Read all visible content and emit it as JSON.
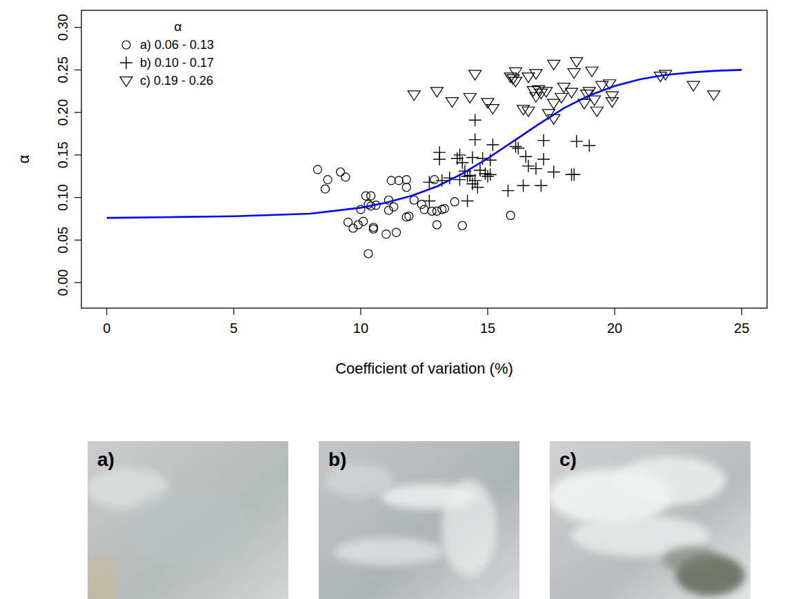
{
  "chart_data": {
    "type": "scatter",
    "x_label": "Coefficient of variation  (%)",
    "y_label": "α",
    "legend_title": "α",
    "legend": "top-left",
    "xlim": [
      -1,
      26
    ],
    "ylim": [
      -0.03,
      0.32
    ],
    "xticks": [
      0,
      5,
      10,
      15,
      20,
      25
    ],
    "yticks": [
      {
        "value": 0,
        "label": "0.00"
      },
      {
        "value": 0.05,
        "label": "0.05"
      },
      {
        "value": 0.1,
        "label": "0.10"
      },
      {
        "value": 0.15,
        "label": "0.15"
      },
      {
        "value": 0.2,
        "label": "0.20"
      },
      {
        "value": 0.25,
        "label": "0.25"
      },
      {
        "value": 0.3,
        "label": "0.30"
      }
    ],
    "grid": false,
    "series": [
      {
        "name": "a) 0.06 - 0.13",
        "type": "scatter",
        "marker": "circle",
        "color": "#000000",
        "x": [
          8.3,
          8.6,
          8.7,
          9.2,
          9.4,
          9.5,
          9.7,
          9.9,
          10.0,
          10.1,
          10.2,
          10.3,
          10.3,
          10.4,
          10.4,
          10.5,
          10.5,
          10.6,
          11.0,
          11.1,
          11.1,
          11.2,
          11.3,
          11.4,
          11.5,
          11.8,
          11.8,
          11.8,
          11.9,
          12.1,
          12.4,
          12.5,
          12.8,
          12.9,
          13.0,
          13.0,
          13.2,
          13.3,
          13.7,
          14.0,
          15.9
        ],
        "values": [
          0.133,
          0.11,
          0.121,
          0.13,
          0.124,
          0.071,
          0.064,
          0.068,
          0.086,
          0.072,
          0.102,
          0.034,
          0.092,
          0.102,
          0.09,
          0.065,
          0.063,
          0.091,
          0.057,
          0.097,
          0.085,
          0.12,
          0.089,
          0.059,
          0.12,
          0.077,
          0.121,
          0.112,
          0.078,
          0.097,
          0.092,
          0.086,
          0.084,
          0.121,
          0.084,
          0.068,
          0.086,
          0.087,
          0.095,
          0.067,
          0.079
        ]
      },
      {
        "name": "b) 0.10 - 0.17",
        "type": "scatter",
        "marker": "plus",
        "color": "#000000",
        "x": [
          12.7,
          12.7,
          13.1,
          13.1,
          13.2,
          13.5,
          13.8,
          13.9,
          13.9,
          14.0,
          14.1,
          14.2,
          14.2,
          14.3,
          14.4,
          14.4,
          14.5,
          14.5,
          14.5,
          14.6,
          14.7,
          14.8,
          14.9,
          15.0,
          15.1,
          15.1,
          15.2,
          15.8,
          16.1,
          16.2,
          16.4,
          16.5,
          16.6,
          16.9,
          17.1,
          17.2,
          17.2,
          17.6,
          18.3,
          18.4,
          18.5,
          19.0
        ],
        "values": [
          0.118,
          0.096,
          0.153,
          0.145,
          0.12,
          0.123,
          0.146,
          0.15,
          0.121,
          0.141,
          0.131,
          0.096,
          0.125,
          0.126,
          0.116,
          0.147,
          0.12,
          0.191,
          0.168,
          0.112,
          0.132,
          0.146,
          0.128,
          0.125,
          0.144,
          0.127,
          0.162,
          0.108,
          0.16,
          0.158,
          0.114,
          0.148,
          0.137,
          0.134,
          0.114,
          0.167,
          0.145,
          0.13,
          0.127,
          0.127,
          0.166,
          0.161
        ]
      },
      {
        "name": "c) 0.19 - 0.26",
        "type": "scatter",
        "marker": "triangle-down",
        "color": "#000000",
        "x": [
          12.1,
          13.0,
          13.6,
          14.3,
          14.5,
          15.0,
          15.2,
          15.9,
          16.0,
          16.1,
          16.1,
          16.4,
          16.6,
          16.6,
          16.8,
          16.9,
          16.9,
          17.0,
          17.1,
          17.3,
          17.4,
          17.6,
          17.6,
          17.6,
          17.9,
          18.0,
          18.3,
          18.4,
          18.5,
          18.8,
          18.9,
          19.0,
          19.1,
          19.2,
          19.3,
          19.5,
          19.8,
          19.9,
          19.9,
          21.8,
          22.0,
          23.1,
          23.9
        ],
        "values": [
          0.221,
          0.225,
          0.213,
          0.218,
          0.245,
          0.212,
          0.205,
          0.242,
          0.24,
          0.237,
          0.248,
          0.204,
          0.202,
          0.242,
          0.226,
          0.246,
          0.219,
          0.227,
          0.223,
          0.225,
          0.199,
          0.257,
          0.193,
          0.211,
          0.218,
          0.23,
          0.224,
          0.247,
          0.26,
          0.211,
          0.222,
          0.225,
          0.249,
          0.215,
          0.202,
          0.232,
          0.234,
          0.22,
          0.213,
          0.243,
          0.245,
          0.232,
          0.221
        ]
      },
      {
        "type": "line",
        "line_style": "solid",
        "color": "#0000ff",
        "x": [
          0,
          2.5,
          5,
          8,
          10,
          11,
          12,
          13,
          14,
          15,
          16,
          17,
          18,
          19,
          20,
          21,
          22,
          23,
          24,
          25
        ],
        "values": [
          0.076,
          0.077,
          0.078,
          0.081,
          0.088,
          0.094,
          0.102,
          0.113,
          0.128,
          0.146,
          0.166,
          0.186,
          0.205,
          0.22,
          0.231,
          0.239,
          0.244,
          0.247,
          0.249,
          0.25
        ]
      }
    ]
  },
  "images": [
    {
      "label": "a)"
    },
    {
      "label": "b)"
    },
    {
      "label": "c)"
    }
  ]
}
